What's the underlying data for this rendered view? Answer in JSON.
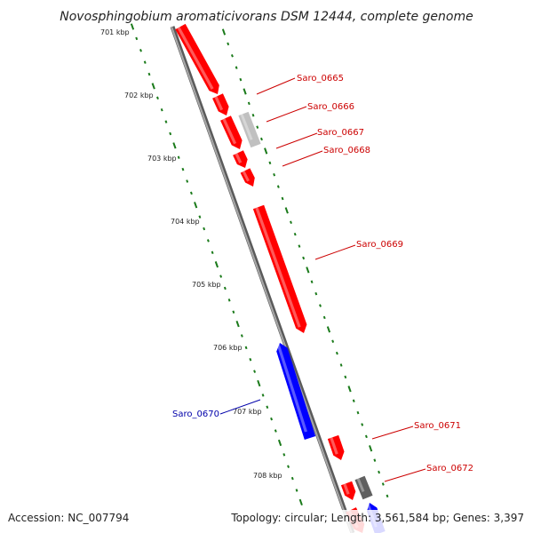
{
  "title": "Novosphingobium aromaticivorans DSM 12444, complete genome",
  "footer": {
    "accession": "Accession: NC_007794",
    "topology": "Topology: circular; Length: 3,561,584 bp; Genes: 3,397"
  },
  "colors": {
    "forward_gene": "#ff0000",
    "reverse_gene": "#0000ff",
    "other_gene_light": "#c0c0c0",
    "other_gene_dark": "#606060",
    "tick": "#1a7a1a",
    "backbone": "#8c8c8c",
    "label_forward": "#cc0000",
    "label_reverse": "#0000aa"
  },
  "tick_labels": [
    {
      "label": "701 kbp"
    },
    {
      "label": "702 kbp"
    },
    {
      "label": "703 kbp"
    },
    {
      "label": "704 kbp"
    },
    {
      "label": "705 kbp"
    },
    {
      "label": "706 kbp"
    },
    {
      "label": "707 kbp"
    },
    {
      "label": "708 kbp"
    }
  ],
  "gene_labels": [
    {
      "name": "Saro_0665",
      "strand": "forward"
    },
    {
      "name": "Saro_0666",
      "strand": "forward"
    },
    {
      "name": "Saro_0667",
      "strand": "forward"
    },
    {
      "name": "Saro_0668",
      "strand": "forward"
    },
    {
      "name": "Saro_0669",
      "strand": "forward"
    },
    {
      "name": "Saro_0670",
      "strand": "reverse"
    },
    {
      "name": "Saro_0671",
      "strand": "forward"
    },
    {
      "name": "Saro_0672",
      "strand": "forward"
    }
  ]
}
